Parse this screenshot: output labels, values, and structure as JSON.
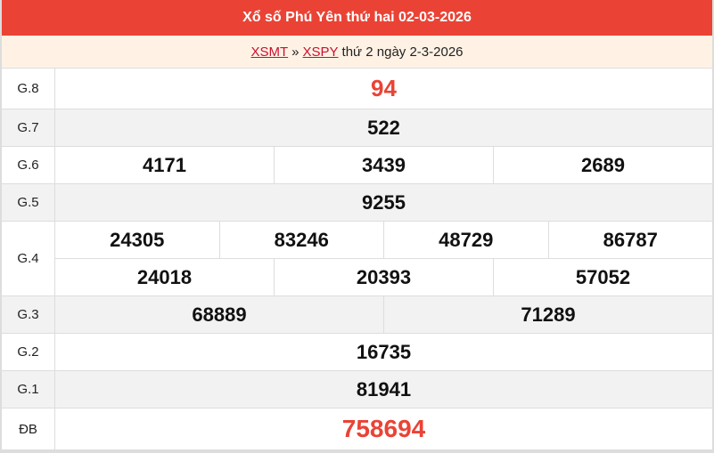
{
  "title": "Xổ số Phú Yên thứ hai 02-03-2026",
  "breadcrumb": {
    "link1": "XSMT",
    "sep": "»",
    "link2": "XSPY",
    "text": "thứ 2 ngày 2-3-2026"
  },
  "colors": {
    "header": "#ea4335",
    "special": "#ea4335"
  },
  "rows": [
    {
      "label": "G.8",
      "lines": [
        [
          "94"
        ]
      ]
    },
    {
      "label": "G.7",
      "lines": [
        [
          "522"
        ]
      ]
    },
    {
      "label": "G.6",
      "lines": [
        [
          "4171",
          "3439",
          "2689"
        ]
      ]
    },
    {
      "label": "G.5",
      "lines": [
        [
          "9255"
        ]
      ]
    },
    {
      "label": "G.4",
      "lines": [
        [
          "24305",
          "83246",
          "48729",
          "86787"
        ],
        [
          "24018",
          "20393",
          "57052"
        ]
      ]
    },
    {
      "label": "G.3",
      "lines": [
        [
          "68889",
          "71289"
        ]
      ]
    },
    {
      "label": "G.2",
      "lines": [
        [
          "16735"
        ]
      ]
    },
    {
      "label": "G.1",
      "lines": [
        [
          "81941"
        ]
      ]
    },
    {
      "label": "ĐB",
      "lines": [
        [
          "758694"
        ]
      ]
    }
  ]
}
